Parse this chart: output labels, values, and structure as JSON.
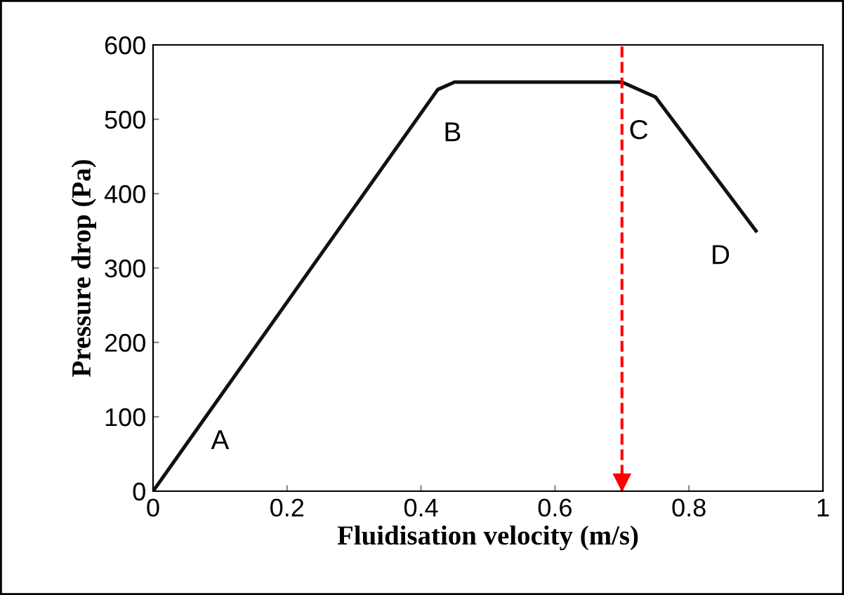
{
  "chart_data": {
    "type": "line",
    "xlabel": "Fluidisation velocity (m/s)",
    "ylabel": "Pressure drop (Pa)",
    "x": [
      0,
      0.425,
      0.45,
      0.7,
      0.75,
      0.9
    ],
    "series": [
      {
        "color": "#111111",
        "values": [
          0,
          540,
          550,
          550,
          530,
          350
        ]
      }
    ],
    "xlim": [
      0,
      1
    ],
    "ylim": [
      0,
      600
    ],
    "xticks": [
      0,
      0.2,
      0.4,
      0.6,
      0.8,
      1
    ],
    "yticks": [
      0,
      100,
      200,
      300,
      400,
      500,
      600
    ],
    "ref_lines": [
      {
        "axis": "x",
        "value": 0.7,
        "color": "#ff0000",
        "line_style": "dashed"
      }
    ],
    "annotations": [
      "A",
      "B",
      "C",
      "D"
    ],
    "grid": false,
    "legend": false,
    "marker": "none",
    "line_style": "solid"
  }
}
